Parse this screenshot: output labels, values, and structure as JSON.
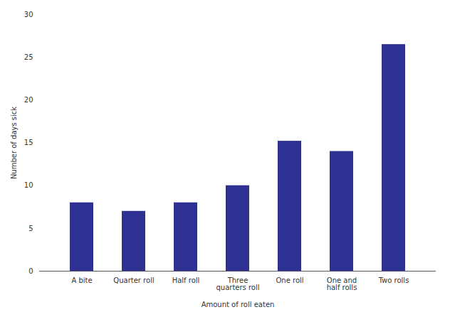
{
  "chart_data": {
    "type": "bar",
    "categories": [
      "A bite",
      "Quarter roll",
      "Half roll",
      "Three\nquarters roll",
      "One roll",
      "One and\nhalf rolls",
      "Two rolls"
    ],
    "values": [
      8,
      7,
      8,
      10,
      15.2,
      14,
      26.5
    ],
    "color": "#2E3191",
    "xlabel": "Amount of roll eaten",
    "ylabel": "Number of days sick",
    "ylim": [
      0,
      30
    ],
    "yticks": [
      0,
      5,
      10,
      15,
      20,
      25,
      30
    ],
    "grid": false
  }
}
